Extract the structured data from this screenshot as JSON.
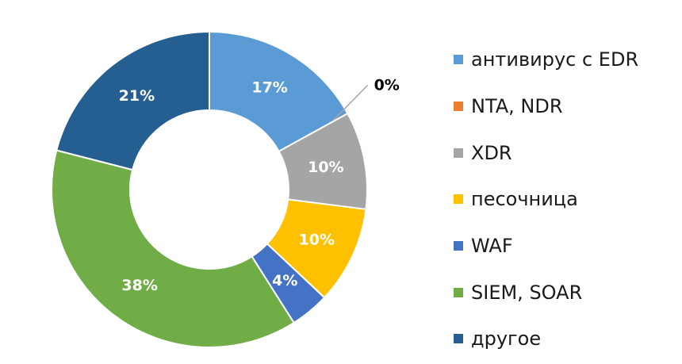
{
  "chart_data": {
    "type": "pie",
    "title": "",
    "legend_position": "right",
    "slices": [
      {
        "name": "антивирус с EDR",
        "value": 17,
        "label": "17%",
        "color": "#5B9BD5"
      },
      {
        "name": "NTA, NDR",
        "value": 0,
        "label": "0%",
        "color": "#ED7D31"
      },
      {
        "name": "XDR",
        "value": 10,
        "label": "10%",
        "color": "#A5A5A5"
      },
      {
        "name": "песочница",
        "value": 10,
        "label": "10%",
        "color": "#FFC000"
      },
      {
        "name": "WAF",
        "value": 4,
        "label": "4%",
        "color": "#4472C4"
      },
      {
        "name": "SIEM, SOAR",
        "value": 38,
        "label": "38%",
        "color": "#70AD47"
      },
      {
        "name": "другое",
        "value": 21,
        "label": "21%",
        "color": "#255E91"
      }
    ]
  }
}
